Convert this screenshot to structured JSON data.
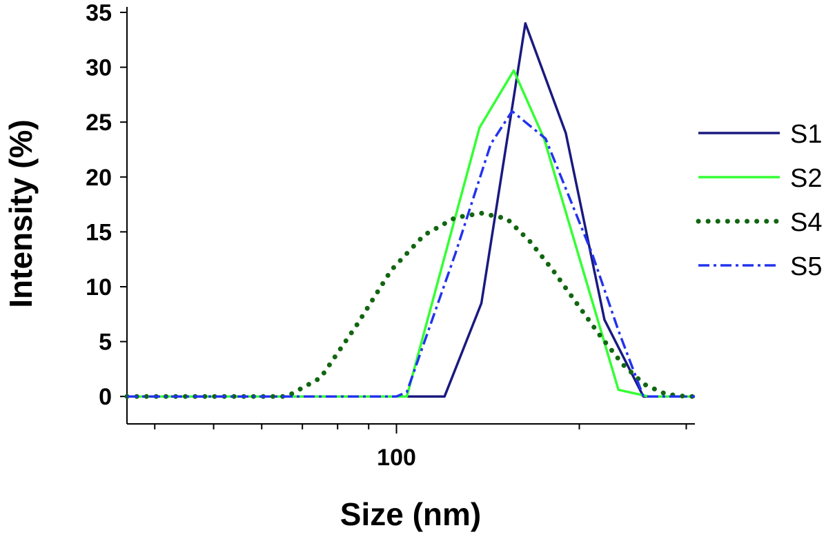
{
  "chart_data": {
    "type": "line",
    "xlabel": "Size (nm)",
    "ylabel": "Intensity (%)",
    "x_scale": "log",
    "xlim": [
      36.0,
      310.0
    ],
    "ylim": [
      -2.5,
      35.5
    ],
    "y_ticks": [
      0,
      5,
      10,
      15,
      20,
      25,
      30,
      35
    ],
    "x_major_ticks": [
      100
    ],
    "x_minor_ticks": [
      40,
      50,
      60,
      70,
      80,
      90,
      200,
      300
    ],
    "x_tick_labels": [
      "100"
    ],
    "grid": false,
    "legend": "right",
    "series": [
      {
        "name": "S1",
        "color": "#1a1a80",
        "style": "solid",
        "x": [
          36,
          120,
          138,
          163,
          190,
          220,
          255,
          310
        ],
        "y": [
          0,
          0,
          8.5,
          34,
          24,
          7,
          0,
          0
        ]
      },
      {
        "name": "S2",
        "color": "#33ff33",
        "style": "solid",
        "x": [
          36,
          104,
          137,
          156,
          175,
          232,
          260,
          310
        ],
        "y": [
          0,
          0,
          24.5,
          29.7,
          23.5,
          0.6,
          0,
          0
        ]
      },
      {
        "name": "S4",
        "color": "#116611",
        "style": "dotted",
        "x": [
          36,
          66,
          75,
          86,
          98,
          111,
          125,
          138,
          152,
          166,
          181,
          198,
          216,
          236,
          256,
          278,
          300,
          310
        ],
        "y": [
          0,
          0,
          1.7,
          6.5,
          11.5,
          14.7,
          16.3,
          16.7,
          16.2,
          14.1,
          11.5,
          8.5,
          5.6,
          2.9,
          1.1,
          0.2,
          0,
          0
        ]
      },
      {
        "name": "S5",
        "color": "#2233ee",
        "style": "dashdot",
        "x": [
          36,
          100,
          104,
          125,
          143,
          155,
          176,
          210,
          232,
          255,
          310
        ],
        "y": [
          0,
          0,
          0.4,
          13,
          23,
          26,
          23.5,
          13,
          6,
          0,
          0
        ]
      }
    ]
  }
}
